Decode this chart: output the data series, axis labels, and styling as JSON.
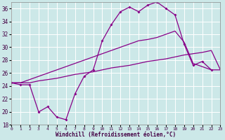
{
  "xlabel": "Windchill (Refroidissement éolien,°C)",
  "background_color": "#cce8e8",
  "grid_color": "#ffffff",
  "line_color": "#880088",
  "xmin": 0,
  "xmax": 23,
  "ymin": 18,
  "ymax": 37,
  "yticks": [
    18,
    20,
    22,
    24,
    26,
    28,
    30,
    32,
    34,
    36
  ],
  "xticks": [
    0,
    1,
    2,
    3,
    4,
    5,
    6,
    7,
    8,
    9,
    10,
    11,
    12,
    13,
    14,
    15,
    16,
    17,
    18,
    19,
    20,
    21,
    22,
    23
  ],
  "line1_x": [
    0,
    1,
    2,
    3,
    4,
    5,
    6,
    7,
    8,
    9,
    10,
    11,
    12,
    13,
    14,
    15,
    16,
    17,
    18,
    19,
    20,
    21,
    22
  ],
  "line1_y": [
    24.5,
    24.2,
    24.2,
    20.0,
    20.8,
    19.2,
    18.8,
    22.8,
    25.5,
    26.5,
    31.0,
    33.5,
    35.5,
    36.2,
    35.5,
    36.5,
    37.0,
    36.0,
    35.0,
    30.5,
    27.2,
    27.8,
    26.5
  ],
  "line2_x": [
    0,
    1,
    2,
    3,
    4,
    5,
    6,
    7,
    8,
    9,
    10,
    11,
    12,
    13,
    14,
    15,
    16,
    17,
    18,
    19,
    20,
    21,
    22,
    23
  ],
  "line2_y": [
    24.5,
    24.5,
    25.0,
    25.5,
    26.0,
    26.5,
    27.0,
    27.5,
    28.0,
    28.5,
    29.0,
    29.5,
    30.0,
    30.5,
    31.0,
    31.2,
    31.5,
    32.0,
    32.5,
    30.8,
    27.5,
    27.0,
    26.5,
    26.5
  ],
  "line3_x": [
    0,
    1,
    2,
    3,
    4,
    5,
    6,
    7,
    8,
    9,
    10,
    11,
    12,
    13,
    14,
    15,
    16,
    17,
    18,
    19,
    20,
    21,
    22,
    23
  ],
  "line3_y": [
    24.5,
    24.5,
    24.5,
    24.8,
    25.0,
    25.2,
    25.5,
    25.8,
    26.0,
    26.2,
    26.5,
    26.8,
    27.0,
    27.2,
    27.5,
    27.8,
    28.0,
    28.2,
    28.5,
    28.8,
    29.0,
    29.2,
    29.5,
    26.5
  ]
}
